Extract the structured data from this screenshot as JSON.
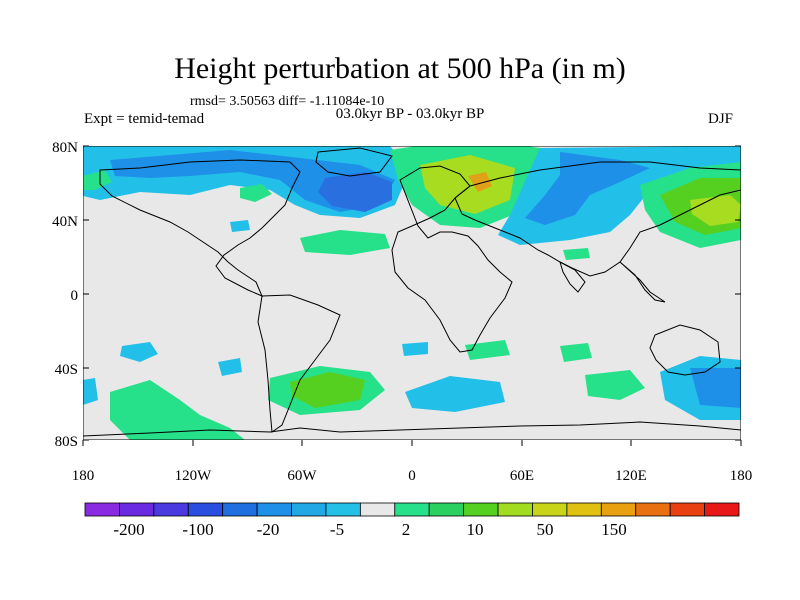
{
  "title": "Height perturbation at 500 hPa (in m)",
  "stats": "rmsd= 3.50563 diff= -1.11084e-10",
  "experiment": "Expt = temid-temad",
  "period": "03.0kyr BP - 03.0kyr BP",
  "season": "DJF",
  "lat_ticks": [
    "80N",
    "40N",
    "0",
    "40S",
    "80S"
  ],
  "lon_ticks": [
    "180",
    "120W",
    "60W",
    "0",
    "60E",
    "120E",
    "180"
  ],
  "colorbar": {
    "labels": [
      "-200",
      "-100",
      "-20",
      "-5",
      "2",
      "10",
      "50",
      "150"
    ],
    "colors": [
      "#8a2be2",
      "#6a2ae0",
      "#4b3adf",
      "#2a4fe0",
      "#1f6fe0",
      "#1e90e8",
      "#22a8e4",
      "#25c0e6",
      "#e8e8e8",
      "#26e08a",
      "#2ad060",
      "#56d020",
      "#a2dc20",
      "#c8d418",
      "#e0c010",
      "#e8a010",
      "#e87010",
      "#e84010",
      "#e81818"
    ]
  },
  "map_colors": {
    "neutral": "#e8e8e8",
    "light_blue": "#22c0e8",
    "mid_blue": "#1e90e8",
    "deep_blue": "#2a6fe0",
    "green": "#26e08a",
    "light_green": "#56d020",
    "yellow_green": "#a8dc20",
    "orange": "#e0a018"
  }
}
